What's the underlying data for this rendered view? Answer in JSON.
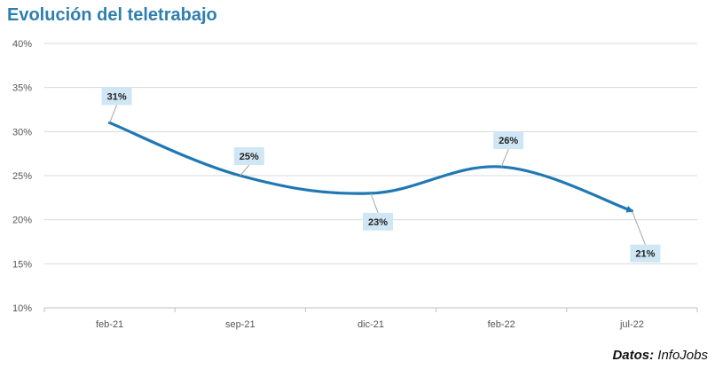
{
  "chart_data": {
    "type": "line",
    "title": "Evolución del teletrabajo",
    "categories": [
      "feb-21",
      "sep-21",
      "dic-21",
      "feb-22",
      "jul-22"
    ],
    "series": [
      {
        "values": [
          31,
          25,
          23,
          26,
          21
        ],
        "color": "#1f78b4"
      }
    ],
    "data_labels": [
      "31%",
      "25%",
      "23%",
      "26%",
      "21%"
    ],
    "y_ticks": [
      "10%",
      "15%",
      "20%",
      "25%",
      "30%",
      "35%",
      "40%"
    ],
    "ylim": [
      10,
      40
    ],
    "grid": true,
    "source_label": "Datos:",
    "source_value": "InfoJobs"
  }
}
